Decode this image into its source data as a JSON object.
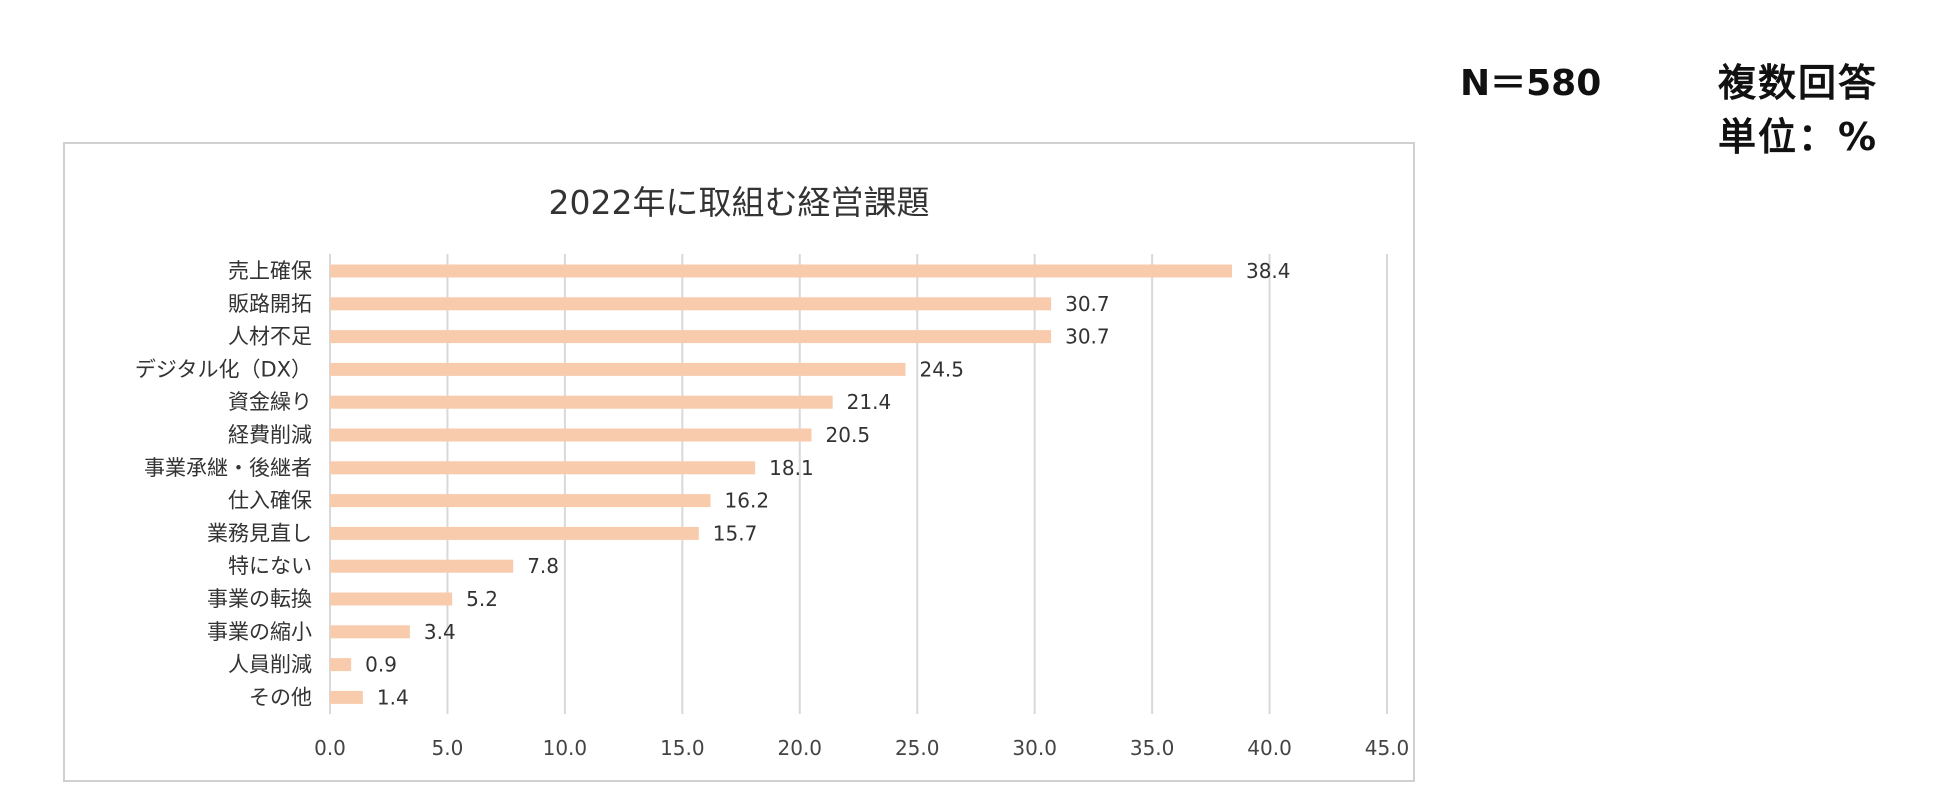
{
  "meta": {
    "n_label": "N＝580",
    "multi_label": "複数回答",
    "unit_label": "単位：%"
  },
  "chart_data": {
    "type": "bar",
    "orientation": "horizontal",
    "title": "2022年に取組む経営課題",
    "categories": [
      "売上確保",
      "販路開拓",
      "人材不足",
      "デジタル化（DX）",
      "資金繰り",
      "経費削減",
      "事業承継・後継者",
      "仕入確保",
      "業務見直し",
      "特にない",
      "事業の転換",
      "事業の縮小",
      "人員削減",
      "その他"
    ],
    "values": [
      38.4,
      30.7,
      30.7,
      24.5,
      21.4,
      20.5,
      18.1,
      16.2,
      15.7,
      7.8,
      5.2,
      3.4,
      0.9,
      1.4
    ],
    "value_labels": [
      "38.4",
      "30.7",
      "30.7",
      "24.5",
      "21.4",
      "20.5",
      "18.1",
      "16.2",
      "15.7",
      "7.8",
      "5.2",
      "3.4",
      "0.9",
      "1.4"
    ],
    "xlim": [
      0,
      45
    ],
    "xticks": [
      0,
      5,
      10,
      15,
      20,
      25,
      30,
      35,
      40,
      45
    ],
    "xtick_labels": [
      "0.0",
      "5.0",
      "10.0",
      "15.0",
      "20.0",
      "25.0",
      "30.0",
      "35.0",
      "40.0",
      "45.0"
    ],
    "grid": true,
    "bar_color": "#f8cbad"
  }
}
